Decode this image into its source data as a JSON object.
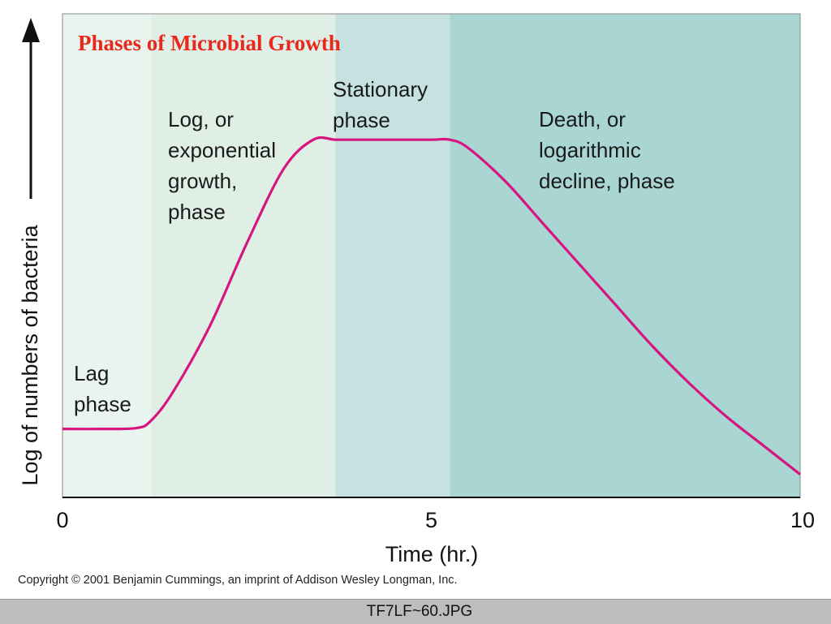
{
  "chart_data": {
    "type": "line",
    "title": "Phases of Microbial Growth",
    "xlabel": "Time (hr.)",
    "ylabel": "Log of numbers of bacteria",
    "xlim": [
      0,
      10
    ],
    "x_ticks": [
      "0",
      "5",
      "10"
    ],
    "x_tick_values": [
      0,
      5,
      10
    ],
    "ylim": [
      0,
      1
    ],
    "grid": false,
    "phases": [
      {
        "label": [
          "Lag",
          "phase"
        ],
        "x_start": 0,
        "x_end": 1.2,
        "color": "#eaf4ef"
      },
      {
        "label": [
          "Log, or",
          "exponential",
          "growth,",
          "phase"
        ],
        "x_start": 1.2,
        "x_end": 3.7,
        "color": "#e0efe6"
      },
      {
        "label": [
          "Stationary",
          "phase"
        ],
        "x_start": 3.7,
        "x_end": 5.25,
        "color": "#c6e2e0"
      },
      {
        "label": [
          "Death, or",
          "logarithmic",
          "decline, phase"
        ],
        "x_start": 5.25,
        "x_end": 10,
        "color": "#a9d5d3"
      }
    ],
    "series": [
      {
        "color": "#d6157f",
        "x": [
          0,
          0.5,
          1.0,
          1.2,
          1.5,
          2.0,
          2.5,
          3.0,
          3.4,
          3.7,
          4.0,
          4.5,
          5.0,
          5.25,
          5.5,
          6.0,
          6.5,
          7.0,
          7.5,
          8.0,
          8.5,
          9.0,
          9.5,
          10.0
        ],
        "y": [
          0.15,
          0.15,
          0.152,
          0.17,
          0.24,
          0.4,
          0.6,
          0.78,
          0.85,
          0.85,
          0.85,
          0.85,
          0.85,
          0.85,
          0.83,
          0.75,
          0.65,
          0.55,
          0.45,
          0.35,
          0.26,
          0.18,
          0.11,
          0.04
        ]
      }
    ]
  },
  "copyright": "Copyright © 2001 Benjamin Cummings, an imprint of Addison Wesley Longman, Inc.",
  "filename": "TF7LF~60.JPG",
  "colors": {
    "title": "#e8281c",
    "curve": "#d6157f",
    "axis": "#111111",
    "filename_bar": "#bdbdbd"
  }
}
